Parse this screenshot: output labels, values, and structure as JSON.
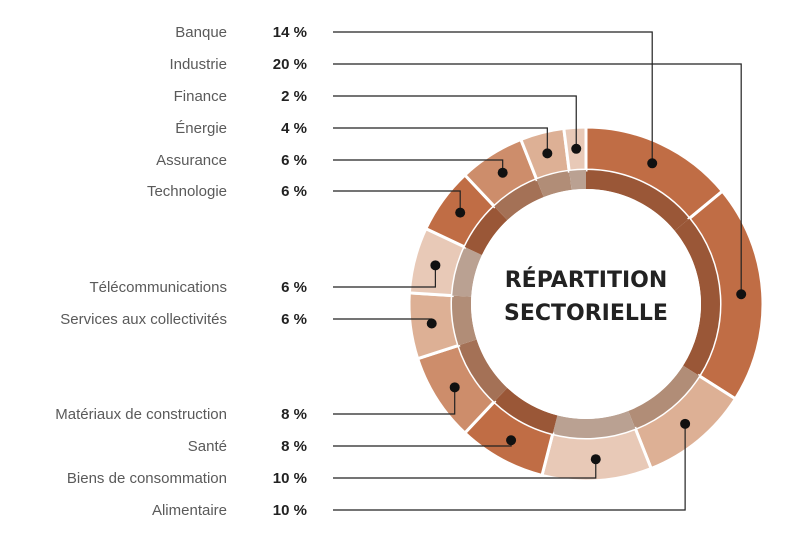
{
  "chart_data": {
    "type": "pie",
    "variant": "donut",
    "title_lines": [
      "RÉPARTITION",
      "SECTORIELLE"
    ],
    "unit_suffix": " %",
    "segments": [
      {
        "label": "Banque",
        "value": 14,
        "color": "#c06d45"
      },
      {
        "label": "Industrie",
        "value": 20,
        "color": "#c06d45"
      },
      {
        "label": "Finance",
        "value": 2,
        "color": "#e8c9b7"
      },
      {
        "label": "Énergie",
        "value": 4,
        "color": "#ddb095"
      },
      {
        "label": "Assurance",
        "value": 6,
        "color": "#cd8d6b"
      },
      {
        "label": "Technologie",
        "value": 6,
        "color": "#c06d45"
      },
      {
        "label": "Télécommunications",
        "value": 6,
        "color": "#e8c9b7"
      },
      {
        "label": "Services aux collectivités",
        "value": 6,
        "color": "#ddb095"
      },
      {
        "label": "Matériaux de construction",
        "value": 8,
        "color": "#cd8d6b"
      },
      {
        "label": "Santé",
        "value": 8,
        "color": "#c06d45"
      },
      {
        "label": "Biens de consommation",
        "value": 10,
        "color": "#e8c9b7"
      },
      {
        "label": "Alimentaire",
        "value": 10,
        "color": "#ddb095"
      }
    ]
  }
}
